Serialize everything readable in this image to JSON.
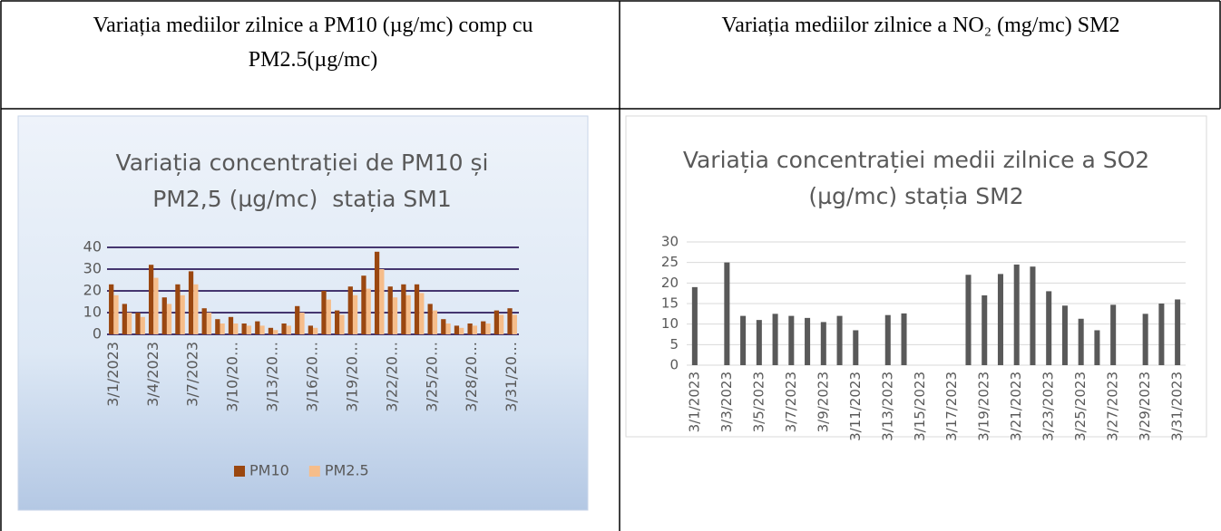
{
  "table": {
    "headers": [
      "Variația mediilor zilnice a PM10 (µg/mc) comp cu PM2.5(µg/mc)",
      "Variația mediilor zilnice a NO₂ (mg/mc) SM2"
    ]
  },
  "chart_data": [
    {
      "type": "bar",
      "title": "Variația concentrației de PM10 și PM2,5 (µg/mc)  stația SM1",
      "categories": [
        "3/1/2023",
        null,
        null,
        "3/4/2023",
        null,
        null,
        "3/7/2023",
        null,
        null,
        "3/10/20…",
        null,
        null,
        "3/13/20…",
        null,
        null,
        "3/16/20…",
        null,
        null,
        "3/19/20…",
        null,
        null,
        "3/22/20…",
        null,
        null,
        "3/25/20…",
        null,
        null,
        "3/28/20…",
        null,
        null,
        "3/31/20…"
      ],
      "series": [
        {
          "name": "PM10",
          "color": "#9a4710",
          "values": [
            23,
            14,
            10,
            32,
            17,
            23,
            29,
            12,
            7,
            8,
            5,
            6,
            3,
            5,
            13,
            4,
            20,
            11,
            22,
            27,
            38,
            22,
            23,
            23,
            14,
            7,
            4,
            5,
            6,
            11,
            12
          ]
        },
        {
          "name": "PM2.5",
          "color": "#f6bd8a",
          "values": [
            18,
            10,
            8,
            26,
            14,
            18,
            23,
            10,
            5,
            5,
            4,
            4,
            2,
            4,
            10,
            3,
            16,
            9,
            18,
            21,
            30,
            17,
            18,
            19,
            11,
            5,
            3,
            4,
            5,
            9,
            9
          ]
        }
      ],
      "ylim": [
        0,
        40
      ],
      "yticks": [
        0,
        10,
        20,
        30,
        40
      ],
      "grid": true,
      "legend": "bottom"
    },
    {
      "type": "bar",
      "title": "Variația concentrației medii zilnice a SO2 (µg/mc) stația SM2",
      "categories": [
        "3/1/2023",
        null,
        "3/3/2023",
        null,
        "3/5/2023",
        null,
        "3/7/2023",
        null,
        "3/9/2023",
        null,
        "3/11/2023",
        null,
        "3/13/2023",
        null,
        "3/15/2023",
        null,
        "3/17/2023",
        null,
        "3/19/2023",
        null,
        "3/21/2023",
        null,
        "3/23/2023",
        null,
        "3/25/2023",
        null,
        "3/27/2023",
        null,
        "3/29/2023",
        null,
        "3/31/2023"
      ],
      "values": [
        19,
        null,
        25,
        12,
        11,
        12.5,
        12,
        11.5,
        10.5,
        12,
        8.5,
        null,
        12.2,
        12.6,
        null,
        null,
        null,
        22,
        17,
        22.2,
        24.5,
        24,
        18,
        14.5,
        11.3,
        8.5,
        14.7,
        null,
        12.5,
        15,
        16
      ],
      "color": "#595959",
      "ylim": [
        0,
        30
      ],
      "yticks": [
        0,
        5,
        10,
        15,
        20,
        25,
        30
      ],
      "grid": true
    }
  ]
}
